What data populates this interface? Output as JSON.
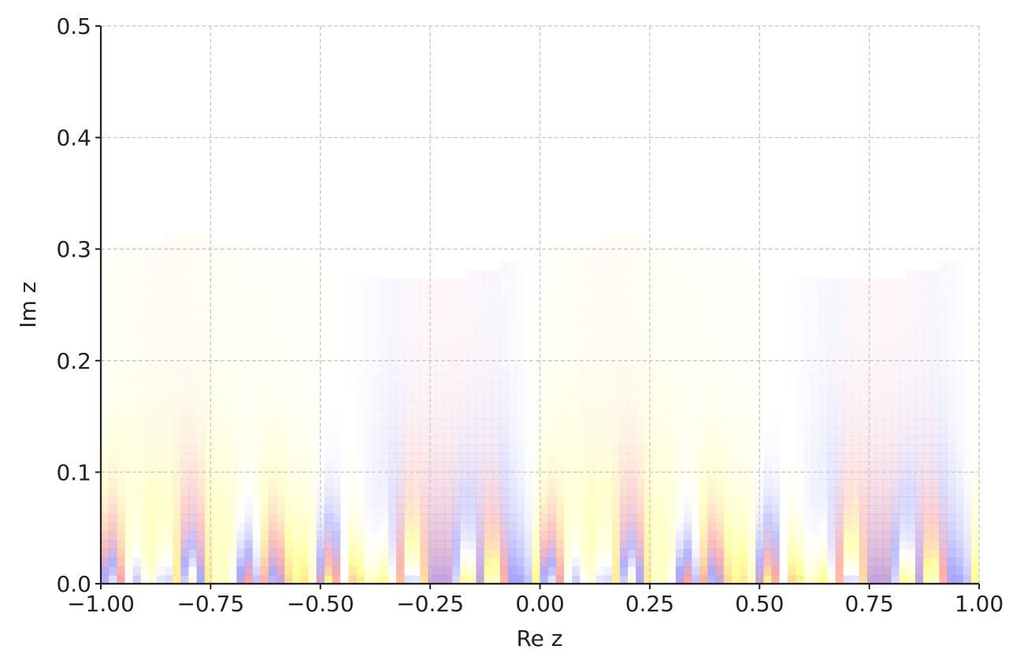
{
  "chart_data": {
    "type": "heatmap",
    "title": "",
    "xlabel": "Re z",
    "ylabel": "Im z",
    "xlim": [
      -1.0,
      1.0
    ],
    "ylim": [
      0.0,
      0.5
    ],
    "x_ticks": [
      "−1.00",
      "−0.75",
      "−0.50",
      "−0.25",
      "0.00",
      "0.25",
      "0.50",
      "0.75",
      "1.00"
    ],
    "y_ticks": [
      "0.0",
      "0.1",
      "0.2",
      "0.3",
      "0.4",
      "0.5"
    ],
    "x_tick_values": [
      -1.0,
      -0.75,
      -0.5,
      -0.25,
      0.0,
      0.25,
      0.5,
      0.75,
      1.0
    ],
    "y_tick_values": [
      0.0,
      0.1,
      0.2,
      0.3,
      0.4,
      0.5
    ],
    "grid": true,
    "period": 1.0,
    "colormap": [
      "#9a9aff",
      "#ffffff",
      "#ffff88",
      "#ff9a9a"
    ],
    "field_band_edges": [
      0.27,
      0.31
    ]
  }
}
